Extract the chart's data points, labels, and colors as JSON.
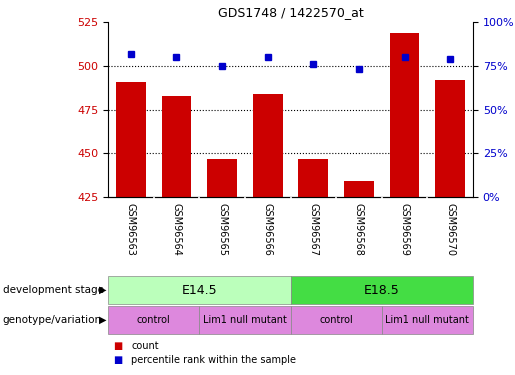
{
  "title": "GDS1748 / 1422570_at",
  "samples": [
    "GSM96563",
    "GSM96564",
    "GSM96565",
    "GSM96566",
    "GSM96567",
    "GSM96568",
    "GSM96569",
    "GSM96570"
  ],
  "counts": [
    491,
    483,
    447,
    484,
    447,
    434,
    519,
    492
  ],
  "percentiles": [
    82,
    80,
    75,
    80,
    76,
    73,
    80,
    79
  ],
  "ylim_left": [
    425,
    525
  ],
  "ylim_right": [
    0,
    100
  ],
  "yticks_left": [
    425,
    450,
    475,
    500,
    525
  ],
  "yticks_right": [
    0,
    25,
    50,
    75,
    100
  ],
  "hlines": [
    500,
    475,
    450
  ],
  "bar_color": "#cc0000",
  "dot_color": "#0000cc",
  "dev_stage_labels": [
    "E14.5",
    "E18.5"
  ],
  "dev_stage_colors": [
    "#bbffbb",
    "#44dd44"
  ],
  "dev_stage_ranges": [
    [
      0,
      4
    ],
    [
      4,
      8
    ]
  ],
  "genotype_labels": [
    "control",
    "Lim1 null mutant",
    "control",
    "Lim1 null mutant"
  ],
  "genotype_color": "#dd88dd",
  "genotype_ranges": [
    [
      0,
      2
    ],
    [
      2,
      4
    ],
    [
      4,
      6
    ],
    [
      6,
      8
    ]
  ],
  "tick_label_color_left": "#cc0000",
  "tick_label_color_right": "#0000cc",
  "xlabel_bar_area_color": "#cccccc",
  "row_label_dev": "development stage",
  "row_label_geno": "genotype/variation",
  "legend_count": "count",
  "legend_pct": "percentile rank within the sample"
}
